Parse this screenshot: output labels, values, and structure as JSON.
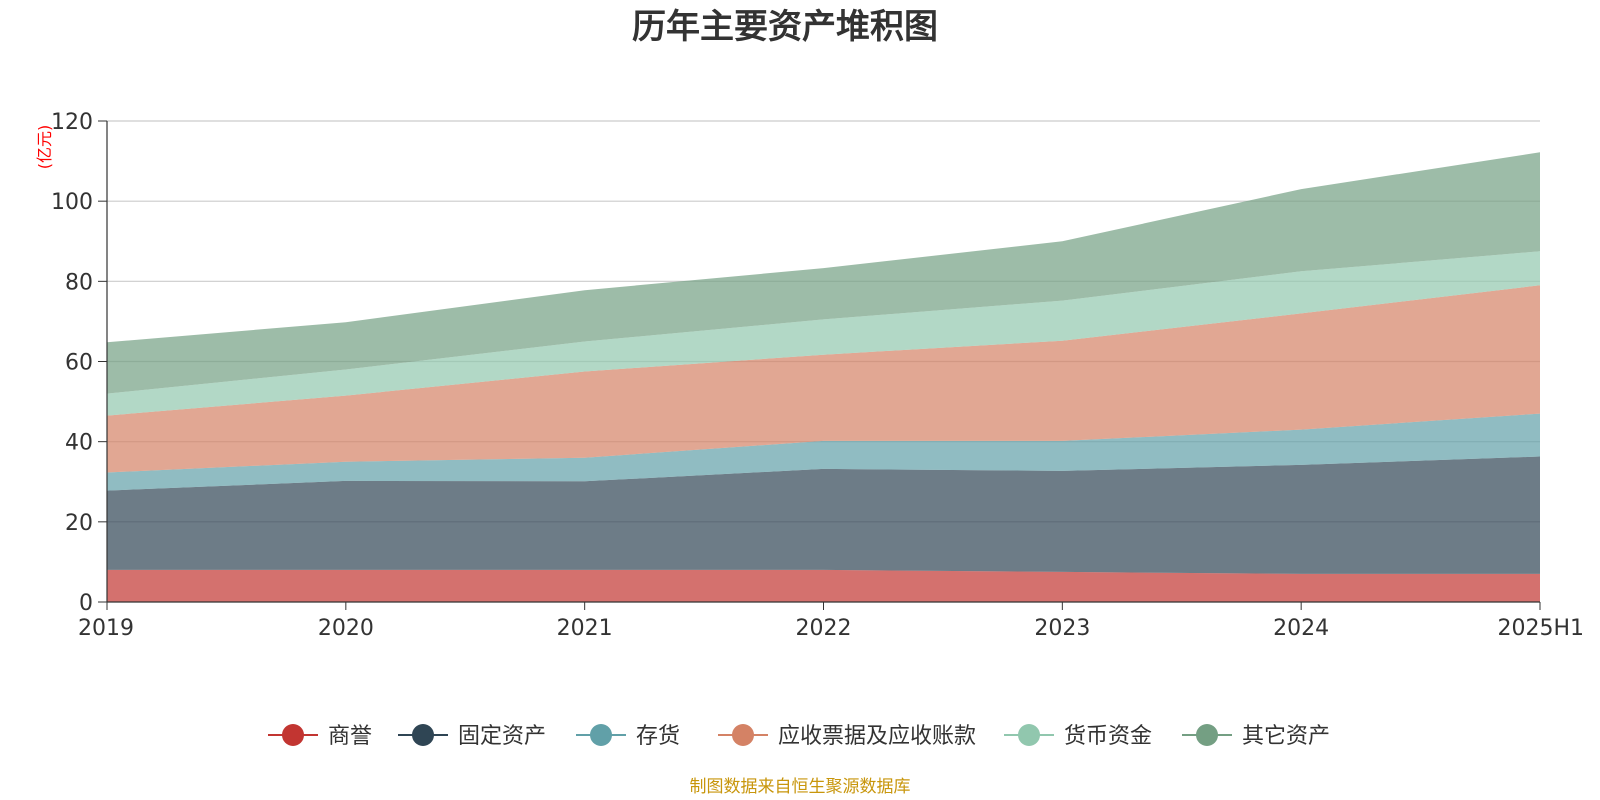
{
  "chart_data": {
    "type": "area",
    "stacked": true,
    "title": "历年主要资产堆积图",
    "unit": "(亿元)",
    "source": "制图数据来自恒生聚源数据库",
    "x": [
      "2019",
      "2020",
      "2021",
      "2022",
      "2023",
      "2024",
      "2025H1"
    ],
    "ylim": [
      0,
      120
    ],
    "yticks": [
      "0",
      "20",
      "40",
      "60",
      "80",
      "100",
      "120"
    ],
    "grid": true,
    "legend_position": "bottom",
    "series": [
      {
        "name": "商誉",
        "color": "#c23531",
        "values": [
          8.0,
          8.0,
          8.0,
          8.0,
          7.5,
          7.0,
          7.0
        ]
      },
      {
        "name": "固定资产",
        "color": "#2f4554",
        "values": [
          19.8,
          22.2,
          22.1,
          25.2,
          25.2,
          27.2,
          29.3
        ]
      },
      {
        "name": "存货",
        "color": "#61a0a8",
        "values": [
          4.5,
          4.8,
          5.9,
          7.0,
          7.5,
          8.8,
          10.7
        ]
      },
      {
        "name": "应收票据及应收账款",
        "color": "#d48265",
        "values": [
          14.2,
          16.5,
          21.5,
          21.5,
          25.0,
          29.0,
          32.0
        ]
      },
      {
        "name": "货币资金",
        "color": "#91c7ae",
        "values": [
          5.5,
          6.5,
          7.5,
          8.8,
          10.0,
          10.5,
          8.5
        ]
      },
      {
        "name": "其它资产",
        "color": "#749f83",
        "values": [
          12.8,
          11.8,
          12.8,
          12.8,
          14.8,
          20.5,
          24.7
        ]
      }
    ]
  }
}
